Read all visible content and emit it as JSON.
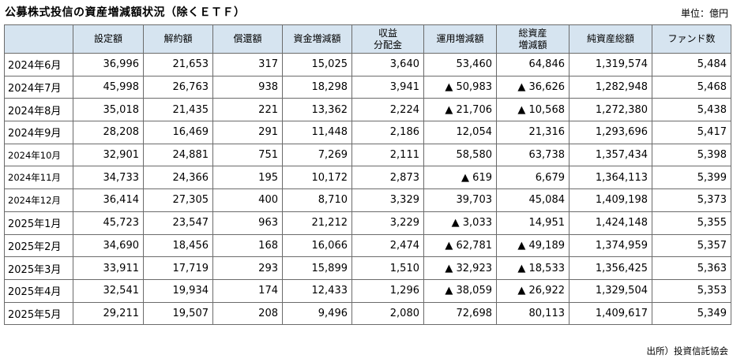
{
  "title": "公募株式投信の資産増減額状況（除くＥＴＦ）",
  "unit": "単位：億円",
  "source": "出所）投資信託協会",
  "columns": [
    {
      "l1": "",
      "l2": ""
    },
    {
      "l1": "設定額",
      "l2": ""
    },
    {
      "l1": "解約額",
      "l2": ""
    },
    {
      "l1": "償還額",
      "l2": ""
    },
    {
      "l1": "資金増減額",
      "l2": ""
    },
    {
      "l1": "収益",
      "l2": "分配金"
    },
    {
      "l1": "運用増減額",
      "l2": ""
    },
    {
      "l1": "総資産",
      "l2": "増減額"
    },
    {
      "l1": "純資産総額",
      "l2": ""
    },
    {
      "l1": "ファンド数",
      "l2": ""
    }
  ],
  "rows": [
    {
      "month": "2024年6月",
      "small": false,
      "cells": [
        "36,996",
        "21,653",
        "317",
        "15,025",
        "3,640",
        "53,460",
        "64,846",
        "1,319,574",
        "5,484"
      ]
    },
    {
      "month": "2024年7月",
      "small": false,
      "cells": [
        "45,998",
        "26,763",
        "938",
        "18,298",
        "3,941",
        "▲ 50,983",
        "▲ 36,626",
        "1,282,948",
        "5,468"
      ]
    },
    {
      "month": "2024年8月",
      "small": false,
      "cells": [
        "35,018",
        "21,435",
        "221",
        "13,362",
        "2,224",
        "▲ 21,706",
        "▲ 10,568",
        "1,272,380",
        "5,438"
      ]
    },
    {
      "month": "2024年9月",
      "small": false,
      "cells": [
        "28,208",
        "16,469",
        "291",
        "11,448",
        "2,186",
        "12,054",
        "21,316",
        "1,293,696",
        "5,417"
      ]
    },
    {
      "month": "2024年10月",
      "small": true,
      "cells": [
        "32,901",
        "24,881",
        "751",
        "7,269",
        "2,111",
        "58,580",
        "63,738",
        "1,357,434",
        "5,398"
      ]
    },
    {
      "month": "2024年11月",
      "small": true,
      "cells": [
        "34,733",
        "24,366",
        "195",
        "10,172",
        "2,873",
        "▲ 619",
        "6,679",
        "1,364,113",
        "5,399"
      ]
    },
    {
      "month": "2024年12月",
      "small": true,
      "cells": [
        "36,414",
        "27,305",
        "400",
        "8,710",
        "3,329",
        "39,703",
        "45,084",
        "1,409,198",
        "5,373"
      ]
    },
    {
      "month": "2025年1月",
      "small": false,
      "cells": [
        "45,723",
        "23,547",
        "963",
        "21,212",
        "3,229",
        "▲ 3,033",
        "14,951",
        "1,424,148",
        "5,355"
      ]
    },
    {
      "month": "2025年2月",
      "small": false,
      "cells": [
        "34,690",
        "18,456",
        "168",
        "16,066",
        "2,474",
        "▲ 62,781",
        "▲ 49,189",
        "1,374,959",
        "5,357"
      ]
    },
    {
      "month": "2025年3月",
      "small": false,
      "cells": [
        "33,911",
        "17,719",
        "293",
        "15,899",
        "1,510",
        "▲ 32,923",
        "▲ 18,533",
        "1,356,425",
        "5,363"
      ]
    },
    {
      "month": "2025年4月",
      "small": false,
      "cells": [
        "32,541",
        "19,934",
        "174",
        "12,433",
        "1,296",
        "▲ 38,059",
        "▲ 26,922",
        "1,329,504",
        "5,353"
      ]
    },
    {
      "month": "2025年5月",
      "small": false,
      "cells": [
        "29,211",
        "19,507",
        "208",
        "9,496",
        "2,080",
        "72,698",
        "80,113",
        "1,409,617",
        "5,349"
      ]
    }
  ],
  "colors": {
    "header_bg": "#d6e4f0",
    "border": "#6b6b6b"
  }
}
